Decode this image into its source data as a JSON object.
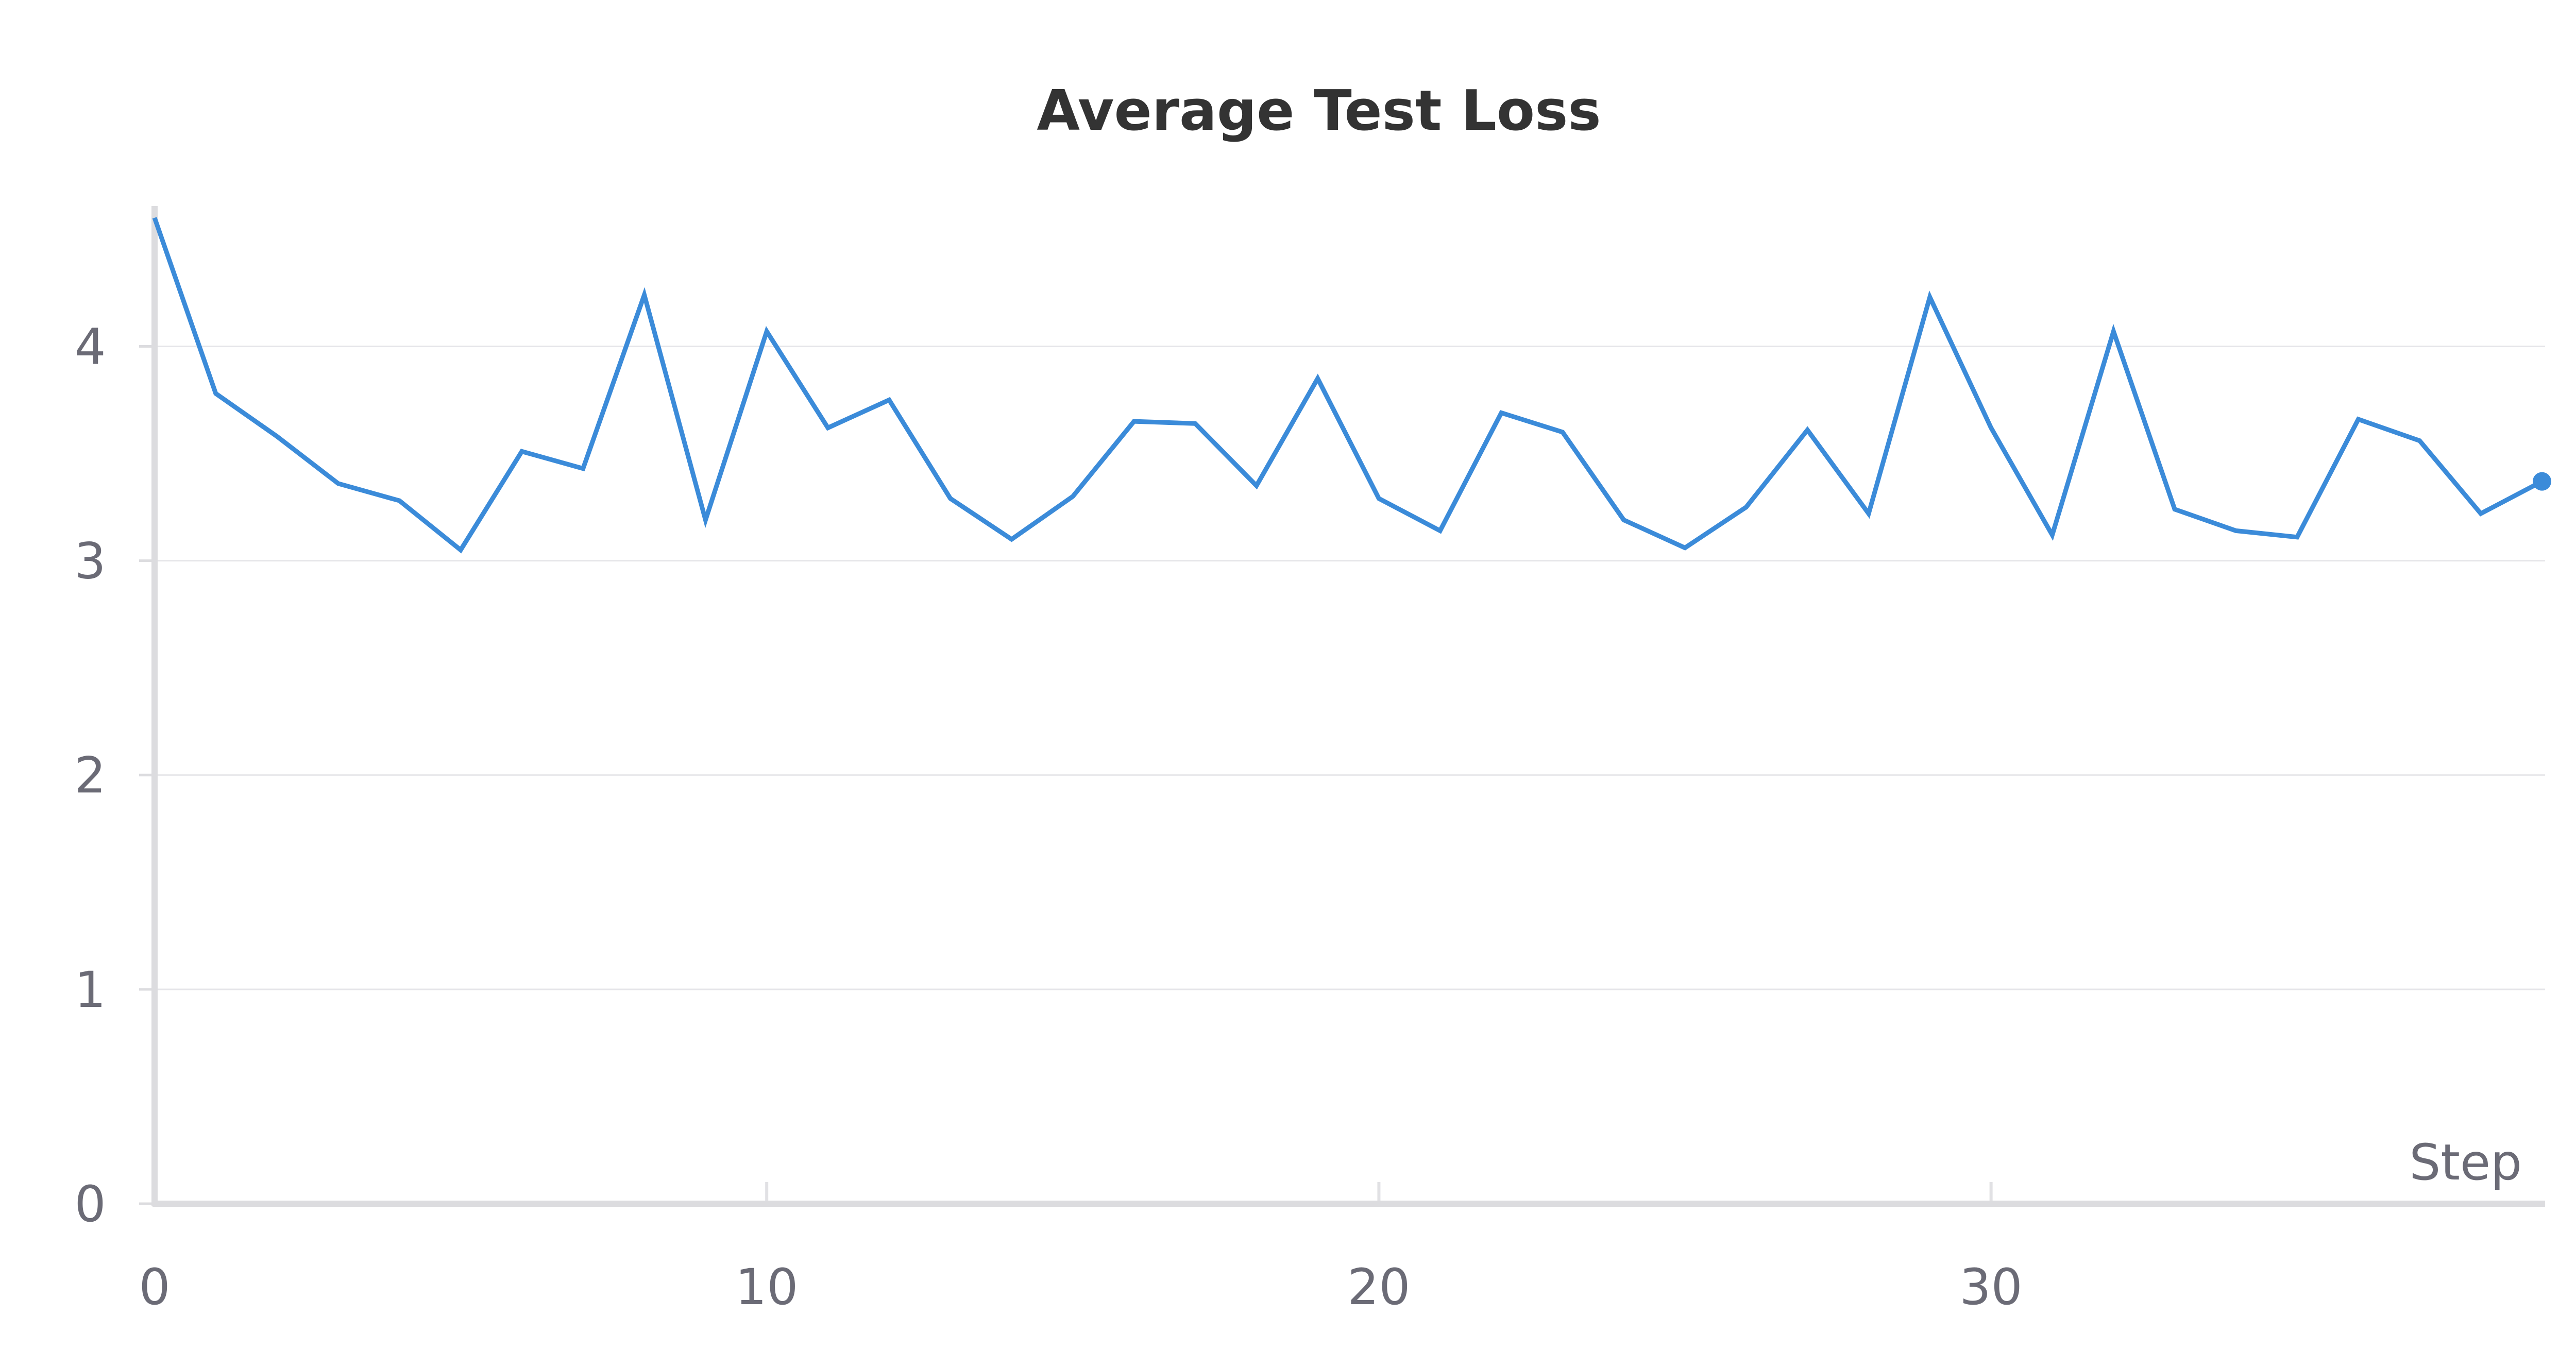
{
  "chart_data": {
    "type": "line",
    "title": "Average Test Loss",
    "xlabel": "Step",
    "ylabel": "",
    "xlim": [
      0,
      39
    ],
    "ylim": [
      0,
      4.65
    ],
    "xticks": [
      0,
      10,
      20,
      30
    ],
    "yticks": [
      0,
      1,
      2,
      3,
      4
    ],
    "grid": "horizontal",
    "line_color": "#3b8bd9",
    "series": [
      {
        "x": [
          0,
          1,
          2,
          3,
          4,
          5,
          6,
          7,
          8,
          9,
          10,
          11,
          12,
          13,
          14,
          15,
          16,
          17,
          18,
          19,
          20,
          21,
          22,
          23,
          24,
          25,
          26,
          27,
          28,
          29,
          30,
          31,
          32,
          33,
          34,
          35,
          36,
          37,
          38,
          39
        ],
        "values": [
          4.6,
          3.78,
          3.58,
          3.36,
          3.28,
          3.05,
          3.51,
          3.43,
          4.24,
          3.19,
          4.07,
          3.62,
          3.75,
          3.29,
          3.1,
          3.3,
          3.65,
          3.64,
          3.35,
          3.85,
          3.29,
          3.14,
          3.69,
          3.6,
          3.19,
          3.06,
          3.25,
          3.61,
          3.22,
          4.23,
          3.62,
          3.12,
          4.07,
          3.24,
          3.14,
          3.11,
          3.66,
          3.56,
          3.22,
          3.37
        ]
      }
    ]
  }
}
